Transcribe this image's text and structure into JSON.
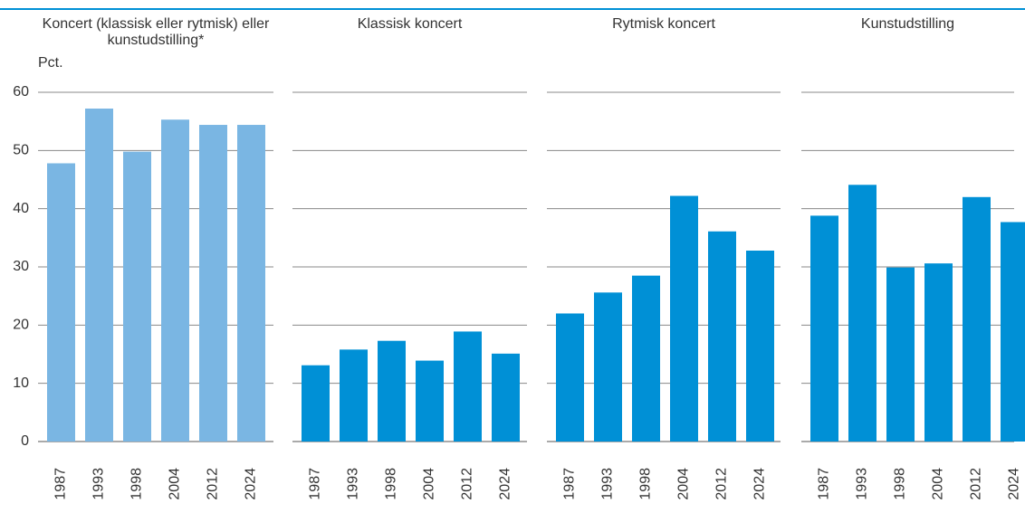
{
  "chart_data": [
    {
      "type": "bar",
      "title": "Koncert (klassisk eller rytmisk) eller kunstudstilling*",
      "ylabel": "Pct.",
      "categories": [
        "1987",
        "1993",
        "1998",
        "2004",
        "2012",
        "2024"
      ],
      "values": [
        47.8,
        57.2,
        49.8,
        55.3,
        54.4,
        54.4
      ],
      "color": "#7ab6e3",
      "ylim": [
        0,
        60
      ],
      "yticks": [
        0,
        10,
        20,
        30,
        40,
        50,
        60
      ],
      "grid": true
    },
    {
      "type": "bar",
      "title": "Klassisk koncert",
      "categories": [
        "1987",
        "1993",
        "1998",
        "2004",
        "2012",
        "2024"
      ],
      "values": [
        13.1,
        15.8,
        17.3,
        13.9,
        18.9,
        15.1
      ],
      "color": "#0090d6",
      "ylim": [
        0,
        60
      ],
      "yticks": [
        0,
        10,
        20,
        30,
        40,
        50,
        60
      ],
      "grid": true
    },
    {
      "type": "bar",
      "title": "Rytmisk koncert",
      "categories": [
        "1987",
        "1993",
        "1998",
        "2004",
        "2012",
        "2024"
      ],
      "values": [
        22.0,
        25.6,
        28.5,
        42.2,
        36.1,
        32.8
      ],
      "color": "#0090d6",
      "ylim": [
        0,
        60
      ],
      "yticks": [
        0,
        10,
        20,
        30,
        40,
        50,
        60
      ],
      "grid": true
    },
    {
      "type": "bar",
      "title": "Kunstudstilling",
      "categories": [
        "1987",
        "1993",
        "1998",
        "2004",
        "2012",
        "2024"
      ],
      "values": [
        38.8,
        44.1,
        29.9,
        30.6,
        42.0,
        37.7
      ],
      "color": "#0090d6",
      "ylim": [
        0,
        60
      ],
      "yticks": [
        0,
        10,
        20,
        30,
        40,
        50,
        60
      ],
      "grid": true
    }
  ]
}
